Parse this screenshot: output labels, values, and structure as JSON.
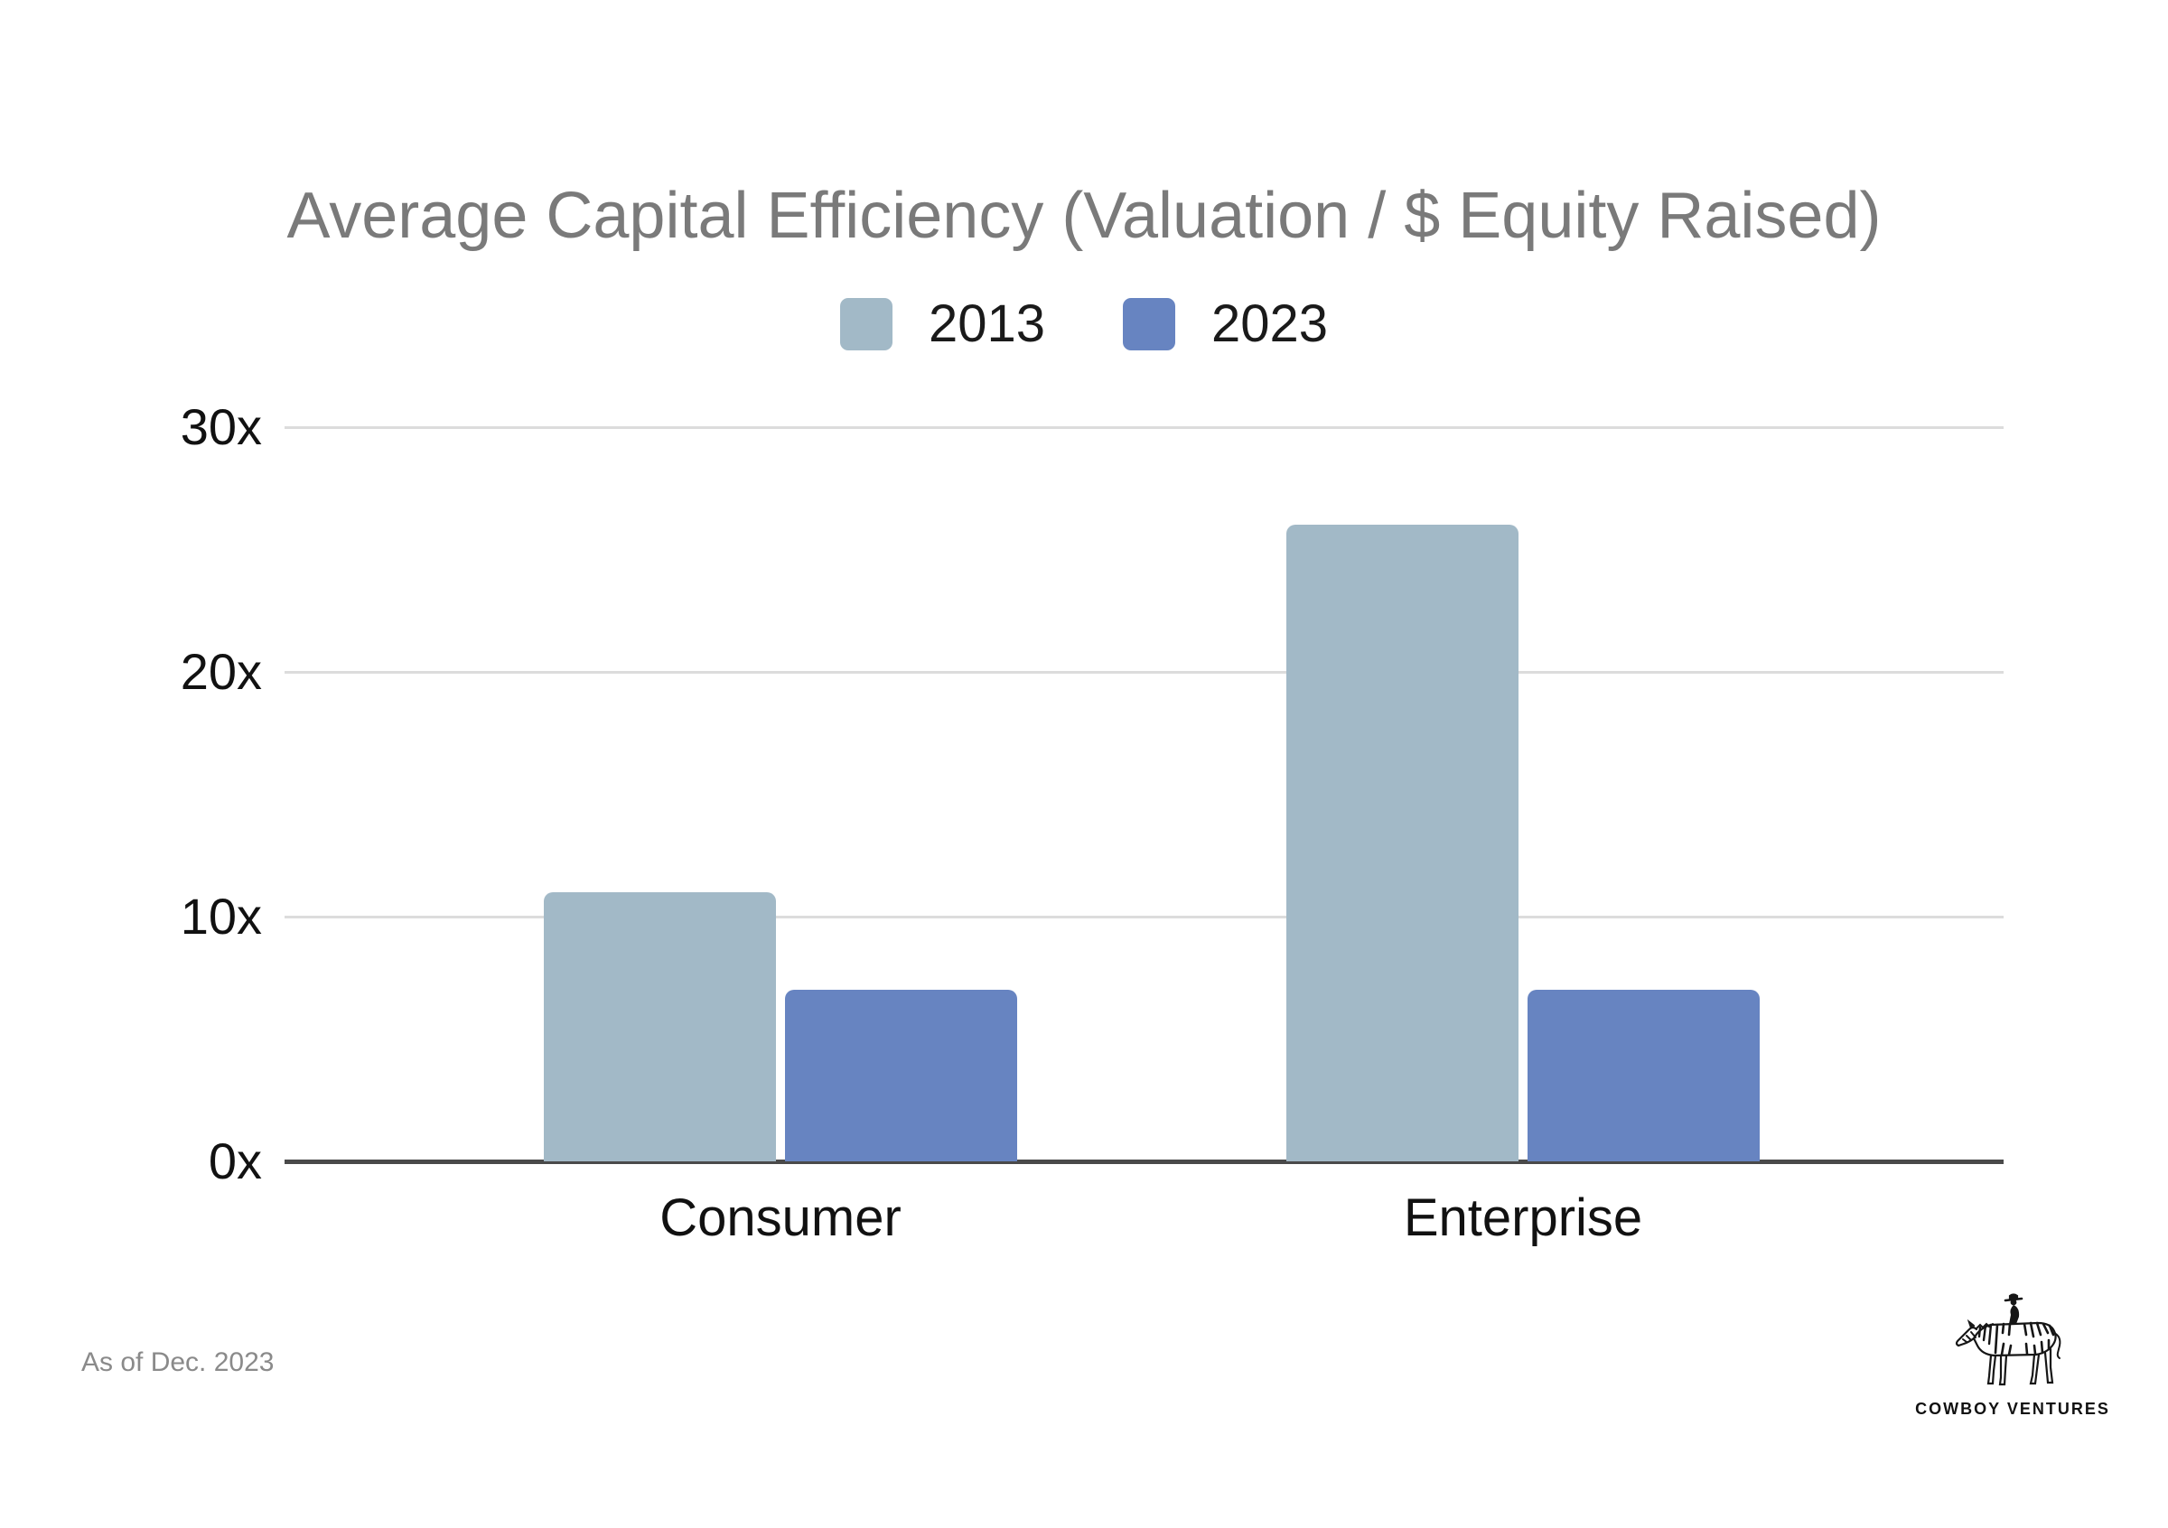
{
  "chart_data": {
    "type": "bar",
    "title": "Average Capital Efficiency (Valuation / $ Equity Raised)",
    "categories": [
      "Consumer",
      "Enterprise"
    ],
    "series": [
      {
        "name": "2013",
        "color": "#a2b9c7",
        "values": [
          11,
          26
        ]
      },
      {
        "name": "2023",
        "color": "#6784c1",
        "values": [
          7,
          7
        ]
      }
    ],
    "ylim": [
      0,
      30
    ],
    "yticks": [
      {
        "value": 0,
        "label": "0x"
      },
      {
        "value": 10,
        "label": "10x"
      },
      {
        "value": 20,
        "label": "20x"
      },
      {
        "value": 30,
        "label": "30x"
      }
    ],
    "grid": true,
    "legend_position": "top-center",
    "xlabel": "",
    "ylabel": ""
  },
  "footer": {
    "note": "As of Dec. 2023"
  },
  "branding": {
    "logo_icon": "cowboy-on-zebra-icon",
    "wordmark": "COWBOY VENTURES"
  },
  "colors": {
    "background": "#ffffff",
    "title_text": "#7a7a7a",
    "tick_text": "#111111",
    "gridline": "#dcdcdc",
    "axis_line": "#4a4a4a",
    "footnote_text": "#8a8a8a",
    "series_2013": "#a2b9c7",
    "series_2023": "#6784c1"
  }
}
